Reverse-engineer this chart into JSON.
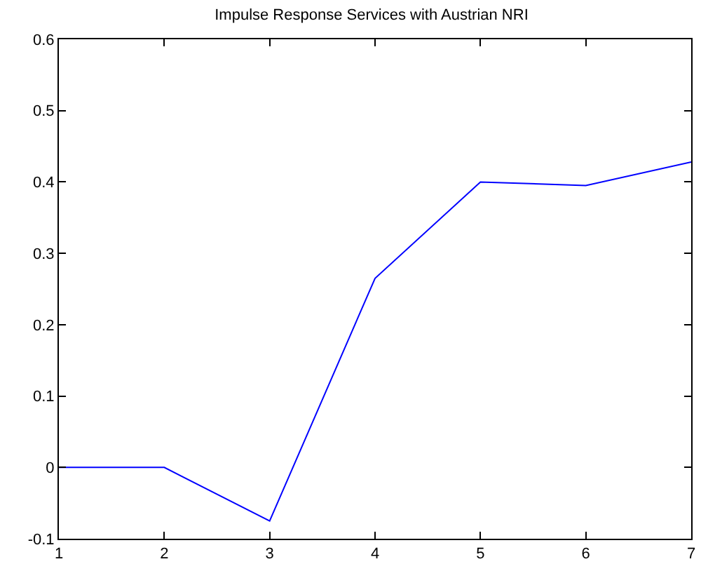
{
  "chart_data": {
    "type": "line",
    "title": "Impulse Response Services with Austrian NRI",
    "x": [
      1,
      2,
      3,
      4,
      5,
      6,
      7
    ],
    "series": [
      {
        "color": "#0000ff",
        "values": [
          0,
          0,
          -0.075,
          0.265,
          0.4,
          0.395,
          0.428
        ]
      }
    ],
    "xlim": [
      1,
      7
    ],
    "xticks": [
      1,
      2,
      3,
      4,
      5,
      6,
      7
    ],
    "ylim": [
      -0.1,
      0.6
    ],
    "yticks": [
      -0.1,
      0,
      0.1,
      0.2,
      0.3,
      0.4,
      0.5,
      0.6
    ],
    "marker": "none",
    "line_style": "solid"
  }
}
